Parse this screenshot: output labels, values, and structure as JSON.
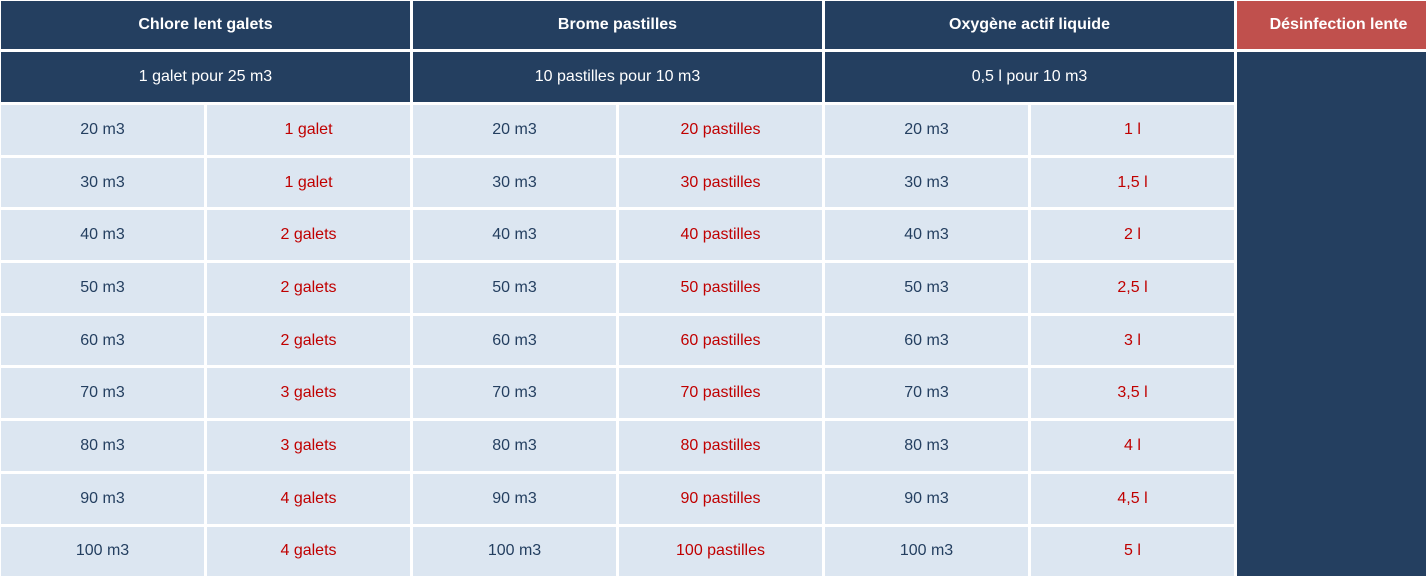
{
  "headers": {
    "chlore": "Chlore lent galets",
    "brome": "Brome pastilles",
    "oxygene": "Oxygène actif liquide",
    "desinfection": "Désinfection lente"
  },
  "subheaders": {
    "chlore": "1 galet  pour 25 m3",
    "brome": "10 pastilles pour 10 m3",
    "oxygene": "0,5 l pour 10 m3"
  },
  "rows": [
    {
      "vol": "20 m3",
      "chlore": "1 galet",
      "brome": "20 pastilles",
      "oxygene": "1 l"
    },
    {
      "vol": "30 m3",
      "chlore": "1 galet",
      "brome": "30 pastilles",
      "oxygene": "1,5 l"
    },
    {
      "vol": "40 m3",
      "chlore": "2 galets",
      "brome": "40 pastilles",
      "oxygene": "2 l"
    },
    {
      "vol": "50 m3",
      "chlore": "2 galets",
      "brome": "50 pastilles",
      "oxygene": "2,5 l"
    },
    {
      "vol": "60 m3",
      "chlore": "2 galets",
      "brome": "60 pastilles",
      "oxygene": "3 l"
    },
    {
      "vol": "70 m3",
      "chlore": "3 galets",
      "brome": "70 pastilles",
      "oxygene": "3,5 l"
    },
    {
      "vol": "80 m3",
      "chlore": "3 galets",
      "brome": "80 pastilles",
      "oxygene": "4 l"
    },
    {
      "vol": "90 m3",
      "chlore": "4 galets",
      "brome": "90 pastilles",
      "oxygene": "4,5 l"
    },
    {
      "vol": "100 m3",
      "chlore": "4 galets",
      "brome": "100 pastilles",
      "oxygene": "5 l"
    }
  ],
  "colors": {
    "header_bg": "#243f60",
    "accent_red_bg": "#c0504d",
    "cell_bg": "#dce6f1",
    "volume_text": "#243f60",
    "dose_text": "#c00000"
  }
}
